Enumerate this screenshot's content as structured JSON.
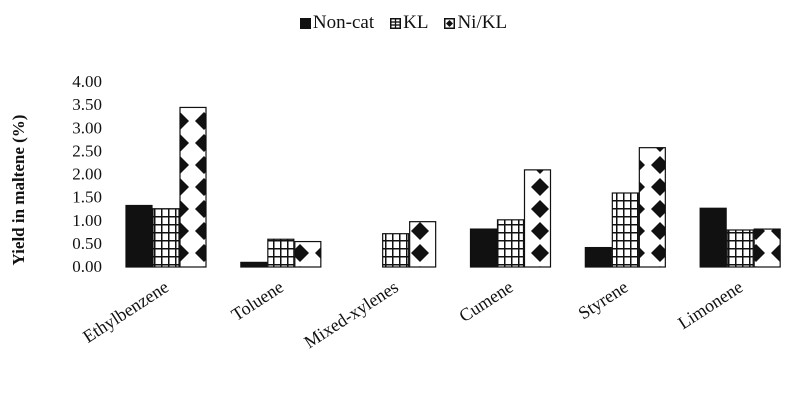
{
  "chart_data": {
    "type": "bar",
    "categories": [
      "Ethylbenzene",
      "Toluene",
      "Mixed-xylenes",
      "Cumene",
      "Styrene",
      "Limonene"
    ],
    "series": [
      {
        "name": "Non-cat",
        "values": [
          1.33,
          0.1,
          0.0,
          0.82,
          0.42,
          1.27
        ]
      },
      {
        "name": "KL",
        "values": [
          1.26,
          0.6,
          0.72,
          1.02,
          1.6,
          0.8
        ]
      },
      {
        "name": "Ni/KL",
        "values": [
          3.45,
          0.55,
          0.98,
          2.1,
          2.58,
          0.82
        ]
      }
    ],
    "ylabel": "Yield in maltene (%)",
    "xlabel": "",
    "ylim": [
      0,
      4
    ],
    "yticks": [
      "0.00",
      "0.50",
      "1.00",
      "1.50",
      "2.00",
      "2.50",
      "3.00",
      "3.50",
      "4.00"
    ],
    "legend_position": "top-center",
    "grid": false,
    "colors": {
      "Non-cat": "#111111",
      "KL": "#ffffff",
      "Ni/KL": "#ffffff",
      "marks": "#111111"
    }
  }
}
